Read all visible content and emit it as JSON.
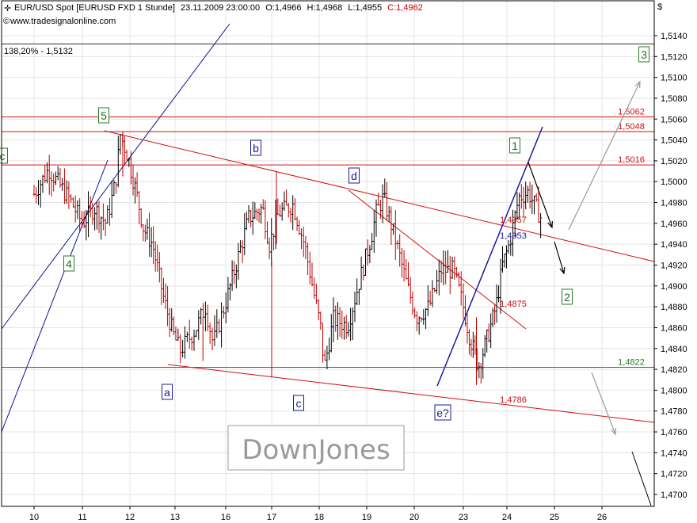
{
  "header": {
    "title": "EUR/USD Spot [EURUSD FXD  1 Stunde]",
    "datetime": "23.11.2009 23:00:00",
    "ohlc": {
      "o": "O:1,4966",
      "h": "H:1,4968",
      "l": "L:1,4955",
      "c": "C:1,4962"
    },
    "source": "www.tradesignalonline.com",
    "currency_symbol": "$",
    "fib_note": "138,20% - 1,5132"
  },
  "watermark": "DownJones",
  "colors": {
    "bull": "#000000",
    "bear": "#c00000",
    "grid": "#e4e4e4",
    "red_line": "#d01010",
    "blue_line": "#101090",
    "green_line": "#2a7a2a"
  },
  "chart_data": {
    "type": "candlestick",
    "symbol": "EUR/USD",
    "timeframe": "1 hour",
    "x_labels": [
      "10",
      "11",
      "12",
      "13",
      "16",
      "17",
      "18",
      "19",
      "20",
      "23",
      "24",
      "25",
      "26"
    ],
    "y_ticks": [
      "1,5140",
      "1,5120",
      "1,5100",
      "1,5080",
      "1,5060",
      "1,5040",
      "1,5020",
      "1,5000",
      "1,4980",
      "1,4960",
      "1,4940",
      "1,4920",
      "1,4900",
      "1,4880",
      "1,4860",
      "1,4840",
      "1,4820",
      "1,4800",
      "1,4780",
      "1,4760",
      "1,4740",
      "1,4720",
      "1,4700"
    ],
    "ylim": [
      1.4693,
      1.5158
    ],
    "price_path": [
      {
        "t": 0,
        "p": 1.4988
      },
      {
        "t": 0.3,
        "p": 1.5012
      },
      {
        "t": 0.75,
        "p": 1.4982
      },
      {
        "t": 1,
        "p": 1.496
      },
      {
        "t": 1.25,
        "p": 1.4975
      },
      {
        "t": 1.5,
        "p": 1.496
      },
      {
        "t": 1.7,
        "p": 1.5
      },
      {
        "t": 1.8,
        "p": 1.5045
      },
      {
        "t": 1.95,
        "p": 1.5025
      },
      {
        "t": 2.15,
        "p": 1.4988
      },
      {
        "t": 2.3,
        "p": 1.4955
      },
      {
        "t": 2.5,
        "p": 1.494
      },
      {
        "t": 2.75,
        "p": 1.4888
      },
      {
        "t": 2.95,
        "p": 1.4855
      },
      {
        "t": 3.1,
        "p": 1.4838
      },
      {
        "t": 3.4,
        "p": 1.4858
      },
      {
        "t": 3.6,
        "p": 1.488
      },
      {
        "t": 3.75,
        "p": 1.4845
      },
      {
        "t": 4.1,
        "p": 1.49
      },
      {
        "t": 4.5,
        "p": 1.4965
      },
      {
        "t": 4.8,
        "p": 1.4975
      },
      {
        "t": 4.95,
        "p": 1.494
      },
      {
        "t": 5.15,
        "p": 1.497
      },
      {
        "t": 5.45,
        "p": 1.4978
      },
      {
        "t": 5.7,
        "p": 1.4938
      },
      {
        "t": 5.9,
        "p": 1.489
      },
      {
        "t": 6.05,
        "p": 1.4855
      },
      {
        "t": 6.1,
        "p": 1.482
      },
      {
        "t": 6.3,
        "p": 1.4868
      },
      {
        "t": 6.6,
        "p": 1.4862
      },
      {
        "t": 6.85,
        "p": 1.4905
      },
      {
        "t": 7.1,
        "p": 1.4948
      },
      {
        "t": 7.2,
        "p": 1.497
      },
      {
        "t": 7.35,
        "p": 1.4985
      },
      {
        "t": 7.6,
        "p": 1.4945
      },
      {
        "t": 7.85,
        "p": 1.49
      },
      {
        "t": 8.05,
        "p": 1.487
      },
      {
        "t": 8.3,
        "p": 1.488
      },
      {
        "t": 8.55,
        "p": 1.4915
      },
      {
        "t": 8.8,
        "p": 1.4915
      },
      {
        "t": 9,
        "p": 1.488
      },
      {
        "t": 9.15,
        "p": 1.485
      },
      {
        "t": 9.35,
        "p": 1.4823
      },
      {
        "t": 9.55,
        "p": 1.485
      },
      {
        "t": 9.75,
        "p": 1.488
      },
      {
        "t": 9.9,
        "p": 1.492
      },
      {
        "t": 10.05,
        "p": 1.494
      },
      {
        "t": 10.25,
        "p": 1.4985
      },
      {
        "t": 10.45,
        "p": 1.499
      },
      {
        "t": 10.75,
        "p": 1.4962
      }
    ],
    "horizontal_levels": [
      {
        "label": "1,5062",
        "value": 1.5062,
        "color": "#d01010"
      },
      {
        "label": "1,5048",
        "value": 1.5048,
        "color": "#d01010"
      },
      {
        "label": "1,5016",
        "value": 1.5016,
        "color": "#d01010"
      },
      {
        "label": "1,4822",
        "value": 1.4822,
        "color": "#2a7a2a"
      }
    ],
    "level_at_top": 1.5132,
    "line_value_labels": [
      {
        "label": "1,4957",
        "color": "#d01010"
      },
      {
        "label": "1,4953",
        "color": "#1a1aa0"
      },
      {
        "label": "1,4875",
        "color": "#d01010"
      },
      {
        "label": "1,4786",
        "color": "#d01010"
      }
    ],
    "wave_labels": [
      {
        "text": "5",
        "style": "green"
      },
      {
        "text": "4",
        "style": "green"
      },
      {
        "text": "a",
        "style": "blue"
      },
      {
        "text": "b",
        "style": "blue"
      },
      {
        "text": "c",
        "style": "blue"
      },
      {
        "text": "d",
        "style": "blue"
      },
      {
        "text": "e?",
        "style": "blue"
      },
      {
        "text": "1",
        "style": "green"
      },
      {
        "text": "2",
        "style": "green"
      },
      {
        "text": "3",
        "style": "green"
      },
      {
        "text": "c",
        "style": "green"
      }
    ]
  }
}
